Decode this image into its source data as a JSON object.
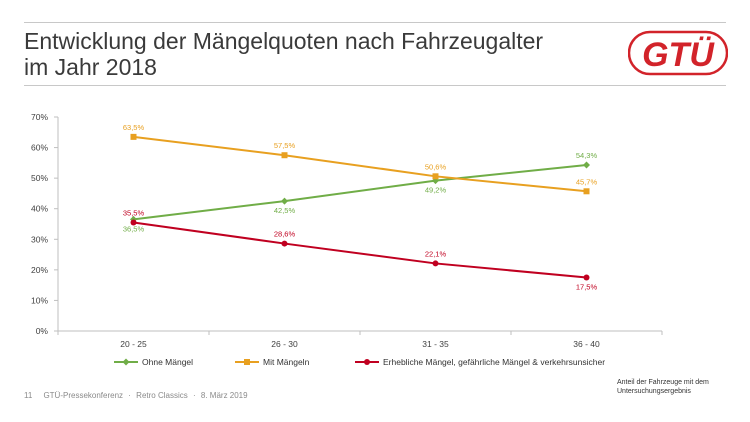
{
  "slide": {
    "title_line1": "Entwicklung der Mängelquoten nach Fahrzeugalter",
    "title_line2": "im Jahr 2018",
    "logo_text": "GTÜ",
    "page_number": "11",
    "footer_event": "GTÜ-Pressekonferenz",
    "footer_venue": "Retro Classics",
    "footer_date": "8. März 2019",
    "footer_separator": "·",
    "note": "Anteil der Fahrzeuge mit dem Untersuchungsergebnis"
  },
  "colors": {
    "ohne": "#70ad47",
    "mit": "#e8a020",
    "erheblich": "#c00020",
    "brand_red": "#d2232a",
    "axis": "#bfbfbf"
  },
  "chart_data": {
    "type": "line",
    "title": "",
    "xlabel": "",
    "ylabel": "",
    "categories": [
      "20 - 25",
      "26 - 30",
      "31 - 35",
      "36 - 40"
    ],
    "ylim": [
      0,
      70
    ],
    "yticks": [
      0,
      10,
      20,
      30,
      40,
      50,
      60,
      70
    ],
    "ytick_labels": [
      "0%",
      "10%",
      "20%",
      "30%",
      "40%",
      "50%",
      "60%",
      "70%"
    ],
    "legend_position": "bottom",
    "series": [
      {
        "name": "Ohne Mängel",
        "marker": "diamond",
        "color_key": "ohne",
        "values": [
          36.5,
          42.5,
          49.2,
          54.3
        ],
        "labels": [
          "36,5%",
          "42,5%",
          "49,2%",
          "54,3%"
        ],
        "label_side": [
          "below",
          "below",
          "below",
          "above"
        ]
      },
      {
        "name": "Mit Mängeln",
        "marker": "square",
        "color_key": "mit",
        "values": [
          63.5,
          57.5,
          50.6,
          45.7
        ],
        "labels": [
          "63,5%",
          "57,5%",
          "50,6%",
          "45,7%"
        ],
        "label_side": [
          "above",
          "above",
          "above",
          "above"
        ]
      },
      {
        "name": "Erhebliche Mängel, gefährliche Mängel & verkehrsunsicher",
        "marker": "circle",
        "color_key": "erheblich",
        "values": [
          35.5,
          28.6,
          22.1,
          17.5
        ],
        "labels": [
          "35,5%",
          "28,6%",
          "22,1%",
          "17,5%"
        ],
        "label_side": [
          "above",
          "above",
          "above",
          "below"
        ]
      }
    ]
  }
}
